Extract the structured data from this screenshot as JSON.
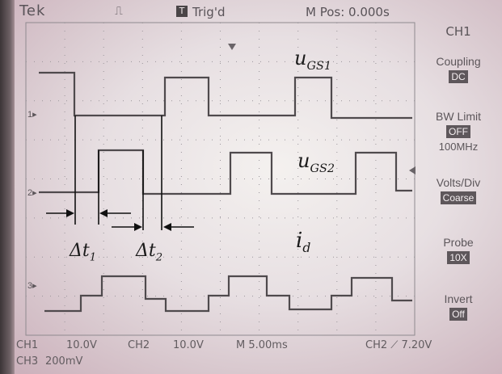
{
  "header": {
    "brand": "Tek",
    "trigger_mark": "⎍",
    "trigger_box": "T",
    "status": "Trig'd",
    "position": "M Pos: 0.000s"
  },
  "menu": {
    "title": "CH1",
    "items": [
      {
        "label": "Coupling",
        "value": "DC",
        "sub": ""
      },
      {
        "label": "BW Limit",
        "value": "OFF",
        "sub": "100MHz"
      },
      {
        "label": "Volts/Div",
        "value": "Coarse",
        "sub": ""
      },
      {
        "label": "Probe",
        "value": "10X",
        "sub": ""
      },
      {
        "label": "Invert",
        "value": "Off",
        "sub": ""
      }
    ]
  },
  "channels": {
    "markers": [
      "1",
      "2",
      "3"
    ]
  },
  "footer": {
    "ch1": "CH1",
    "ch1_scale": "10.0V",
    "ch2": "CH2",
    "ch2_scale": "10.0V",
    "timebase": "M 5.00ms",
    "trigger": "CH2 ⟋ 7.20V",
    "ch3": "CH3",
    "ch3_scale": "200mV"
  },
  "annotations": {
    "ugs1_base": "u",
    "ugs1_sub": "GS1",
    "ugs2_base": "u",
    "ugs2_sub": "GS2",
    "id_base": "i",
    "id_sub": "d",
    "dt1_base": "Δt",
    "dt1_sub": "1",
    "dt2_base": "Δt",
    "dt2_sub": "2"
  },
  "colors": {
    "trace": "#4f4a4d",
    "grid": "#8f8a8f",
    "annotation": "#111111"
  }
}
